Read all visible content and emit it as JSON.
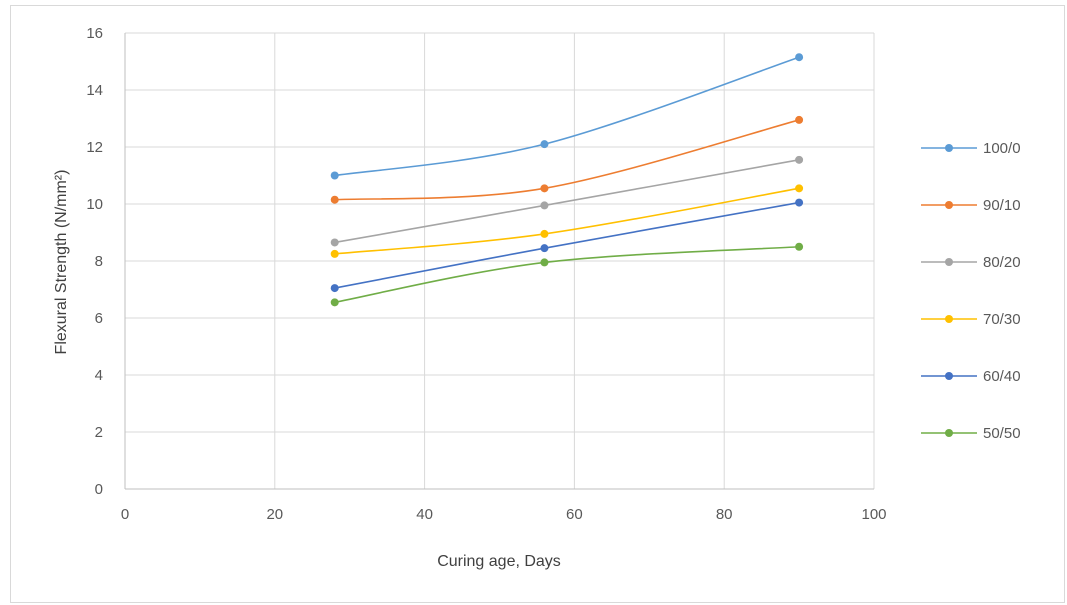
{
  "chart_data": {
    "type": "line",
    "title": "",
    "xlabel": "Curing age, Days",
    "ylabel": "Flexural Strength (N/mm²)",
    "xlim": [
      0,
      100
    ],
    "ylim": [
      0,
      16
    ],
    "xticks": [
      0,
      20,
      40,
      60,
      80,
      100
    ],
    "yticks": [
      0,
      2,
      4,
      6,
      8,
      10,
      12,
      14,
      16
    ],
    "grid": "vertical and horizontal",
    "legend_position": "right",
    "smoothed": true,
    "x": [
      28,
      56,
      90
    ],
    "series": [
      {
        "name": "100/0",
        "color": "#5b9bd5",
        "values": [
          11.0,
          12.1,
          15.15
        ]
      },
      {
        "name": "90/10",
        "color": "#ed7d31",
        "values": [
          10.15,
          10.55,
          12.95
        ]
      },
      {
        "name": "80/20",
        "color": "#a5a5a5",
        "values": [
          8.65,
          9.95,
          11.55
        ]
      },
      {
        "name": "70/30",
        "color": "#ffc000",
        "values": [
          8.25,
          8.95,
          10.55
        ]
      },
      {
        "name": "60/40",
        "color": "#4472c4",
        "values": [
          7.05,
          8.45,
          10.05
        ]
      },
      {
        "name": "50/50",
        "color": "#70ad47",
        "values": [
          6.55,
          7.95,
          8.5
        ]
      }
    ]
  }
}
